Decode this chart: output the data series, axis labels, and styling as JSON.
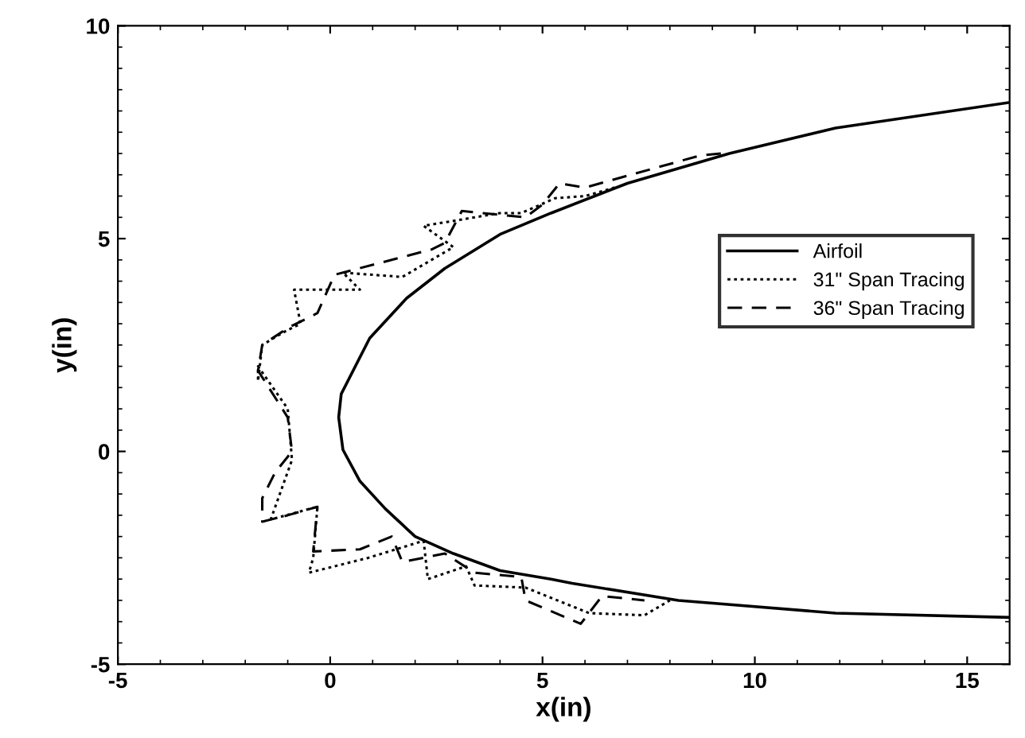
{
  "chart_data": {
    "type": "line",
    "xlabel": "x(in)",
    "ylabel": "y(in)",
    "xlim": [
      -5,
      16
    ],
    "ylim": [
      -5,
      10
    ],
    "xticks": [
      -5,
      0,
      5,
      10,
      15
    ],
    "yticks": [
      -5,
      0,
      5,
      10
    ],
    "grid": false,
    "legend": "right",
    "marker": "none",
    "series": [
      {
        "name": "Airfoil",
        "color": "#000000",
        "line_style": "solid",
        "x": [
          16,
          11.9,
          9.4,
          7.0,
          5.2,
          4.0,
          2.7,
          1.8,
          0.93,
          0.26,
          0.2,
          0.3,
          0.7,
          1.3,
          2.0,
          2.9,
          4.0,
          5.2,
          5.7,
          8.2,
          11.9,
          16
        ],
        "values": [
          8.2,
          7.6,
          7.0,
          6.3,
          5.6,
          5.1,
          4.3,
          3.6,
          2.66,
          1.35,
          0.8,
          0.04,
          -0.7,
          -1.35,
          -2.0,
          -2.4,
          -2.8,
          -3.0,
          -3.1,
          -3.5,
          -3.8,
          -3.9
        ]
      },
      {
        "name": "31\" Span Tracing",
        "color": "#000000",
        "line_style": "dotted",
        "x": [
          6.7,
          6.0,
          5.3,
          4.5,
          4.0,
          2.2,
          2.9,
          1.7,
          0.3,
          0.7,
          -0.85,
          -0.7,
          -1.1,
          -1.6,
          -1.7,
          -1.7,
          -1.0,
          -0.9,
          -1.4,
          -0.3,
          -0.4,
          -0.5,
          0.9,
          2.2,
          2.3,
          3.2,
          3.4,
          4.6,
          6.1,
          7.4,
          8.0
        ],
        "values": [
          6.2,
          6.0,
          5.95,
          5.6,
          5.6,
          5.3,
          4.8,
          4.1,
          4.2,
          3.8,
          3.8,
          3.0,
          2.8,
          2.5,
          1.65,
          2.0,
          1.0,
          -0.2,
          -1.6,
          -1.3,
          -2.5,
          -2.85,
          -2.5,
          -2.1,
          -3.0,
          -2.7,
          -3.15,
          -3.2,
          -3.8,
          -3.85,
          -3.5
        ]
      },
      {
        "name": "36\" Span Tracing",
        "color": "#000000",
        "line_style": "dashed",
        "x": [
          9.2,
          8.7,
          6.0,
          5.4,
          5.0,
          4.6,
          3.1,
          2.7,
          2.4,
          0.1,
          -0.3,
          -1.0,
          -1.6,
          -1.7,
          -1.0,
          -0.9,
          -1.3,
          -1.6,
          -1.6,
          -1.0,
          -0.3,
          -0.4,
          0.7,
          1.45,
          1.7,
          2.7,
          3.4,
          4.5,
          4.6,
          5.9,
          6.4,
          7.4
        ],
        "values": [
          7.0,
          6.95,
          6.2,
          6.3,
          5.8,
          5.5,
          5.65,
          4.9,
          4.75,
          4.15,
          3.25,
          2.9,
          2.5,
          1.9,
          0.8,
          0.0,
          -0.5,
          -1.1,
          -1.65,
          -1.5,
          -1.3,
          -2.35,
          -2.3,
          -2.0,
          -2.6,
          -2.4,
          -2.85,
          -2.95,
          -3.5,
          -4.05,
          -3.4,
          -3.5
        ]
      }
    ]
  }
}
